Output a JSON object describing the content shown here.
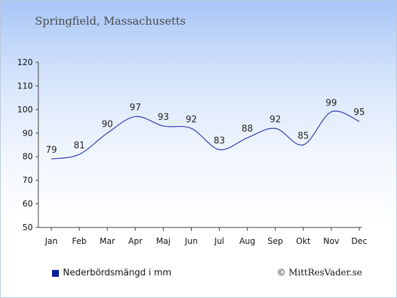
{
  "colors": {
    "line": "#2a35a8",
    "axis": "#333333",
    "legend_swatch": "#0a1fa0"
  },
  "chart_data": {
    "type": "line",
    "title": "Springfield, Massachusetts",
    "categories": [
      "Jan",
      "Feb",
      "Mar",
      "Apr",
      "Maj",
      "Jun",
      "Jul",
      "Aug",
      "Sep",
      "Okt",
      "Nov",
      "Dec"
    ],
    "series": [
      {
        "name": "Nederbördsmängd i mm",
        "values": [
          79,
          81,
          90,
          97,
          93,
          92,
          83,
          88,
          92,
          85,
          99,
          95
        ]
      }
    ],
    "ylim": [
      50,
      120
    ],
    "yticks": [
      50,
      60,
      70,
      80,
      90,
      100,
      110,
      120
    ],
    "xlabel": "",
    "ylabel": "",
    "grid": false,
    "legend": "bottom-left"
  },
  "footer": {
    "copyright": "© MittResVader.se"
  }
}
